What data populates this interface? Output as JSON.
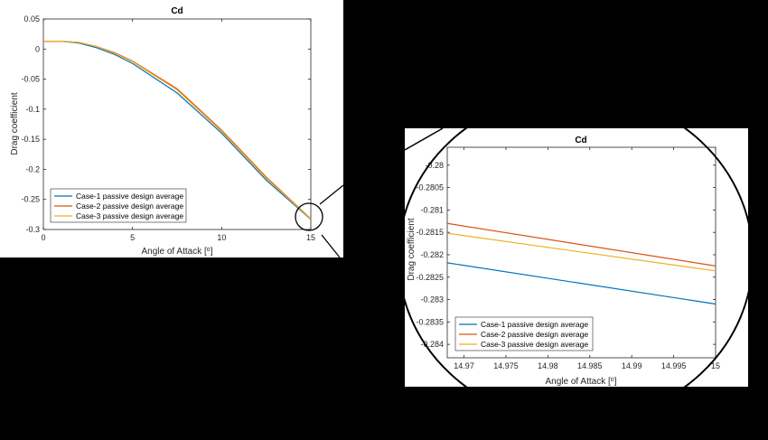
{
  "chart_data": [
    {
      "type": "line",
      "title": "Cd",
      "xlabel": "Angle of Attack [",
      "xlabel_unit_sup": "o",
      "xlabel_close": "]",
      "ylabel": "Drag coefficient",
      "xlim": [
        0,
        15
      ],
      "ylim": [
        -0.3,
        0.05
      ],
      "xticks": [
        "0",
        "5",
        "10",
        "15"
      ],
      "xtick_values": [
        0,
        5,
        10,
        15
      ],
      "yticks": [
        "0.05",
        "0",
        "-0.05",
        "-0.1",
        "-0.15",
        "-0.2",
        "-0.25",
        "-0.3"
      ],
      "ytick_values": [
        0.05,
        0,
        -0.05,
        -0.1,
        -0.15,
        -0.2,
        -0.25,
        -0.3
      ],
      "legend_position": "bottom-left",
      "series": [
        {
          "name": "Case-1 passive design average",
          "color": "#0072BD",
          "x": [
            0,
            1,
            2,
            3,
            4,
            5,
            7.5,
            10,
            12.5,
            15
          ],
          "y": [
            0.013,
            0.013,
            0.01,
            0.002,
            -0.009,
            -0.024,
            -0.073,
            -0.14,
            -0.218,
            -0.2831
          ]
        },
        {
          "name": "Case-2 passive design average",
          "color": "#D95319",
          "x": [
            0,
            1,
            2,
            3,
            4,
            5,
            7.5,
            10,
            12.5,
            15
          ],
          "y": [
            0.013,
            0.013,
            0.011,
            0.004,
            -0.006,
            -0.02,
            -0.066,
            -0.135,
            -0.213,
            -0.2823
          ]
        },
        {
          "name": "Case-3 passive design average",
          "color": "#EDB120",
          "x": [
            0,
            1,
            2,
            3,
            4,
            5,
            7.5,
            10,
            12.5,
            15
          ],
          "y": [
            0.013,
            0.013,
            0.011,
            0.004,
            -0.007,
            -0.021,
            -0.068,
            -0.137,
            -0.215,
            -0.2824
          ]
        }
      ]
    },
    {
      "type": "line",
      "title": "Cd",
      "xlabel": "Angle of Attack [",
      "xlabel_unit_sup": "o",
      "xlabel_close": "]",
      "ylabel": "Drag coefficient",
      "xlim": [
        14.968,
        15
      ],
      "ylim": [
        -0.2843,
        -0.2796
      ],
      "xticks": [
        "14.97",
        "14.975",
        "14.98",
        "14.985",
        "14.99",
        "14.995",
        "15"
      ],
      "xtick_values": [
        14.97,
        14.975,
        14.98,
        14.985,
        14.99,
        14.995,
        15
      ],
      "yticks": [
        "-0.28",
        "-0.2805",
        "-0.281",
        "-0.2815",
        "-0.282",
        "-0.2825",
        "-0.283",
        "-0.2835",
        "-0.284"
      ],
      "ytick_values": [
        -0.28,
        -0.2805,
        -0.281,
        -0.2815,
        -0.282,
        -0.2825,
        -0.283,
        -0.2835,
        -0.284
      ],
      "legend_position": "bottom-left",
      "series": [
        {
          "name": "Case-1 passive design average",
          "color": "#0072BD",
          "x": [
            14.968,
            15
          ],
          "y": [
            -0.28218,
            -0.2831
          ]
        },
        {
          "name": "Case-2 passive design average",
          "color": "#D95319",
          "x": [
            14.968,
            15
          ],
          "y": [
            -0.2813,
            -0.28225
          ]
        },
        {
          "name": "Case-3 passive design average",
          "color": "#EDB120",
          "x": [
            14.968,
            15
          ],
          "y": [
            -0.28152,
            -0.28236
          ]
        }
      ]
    }
  ]
}
